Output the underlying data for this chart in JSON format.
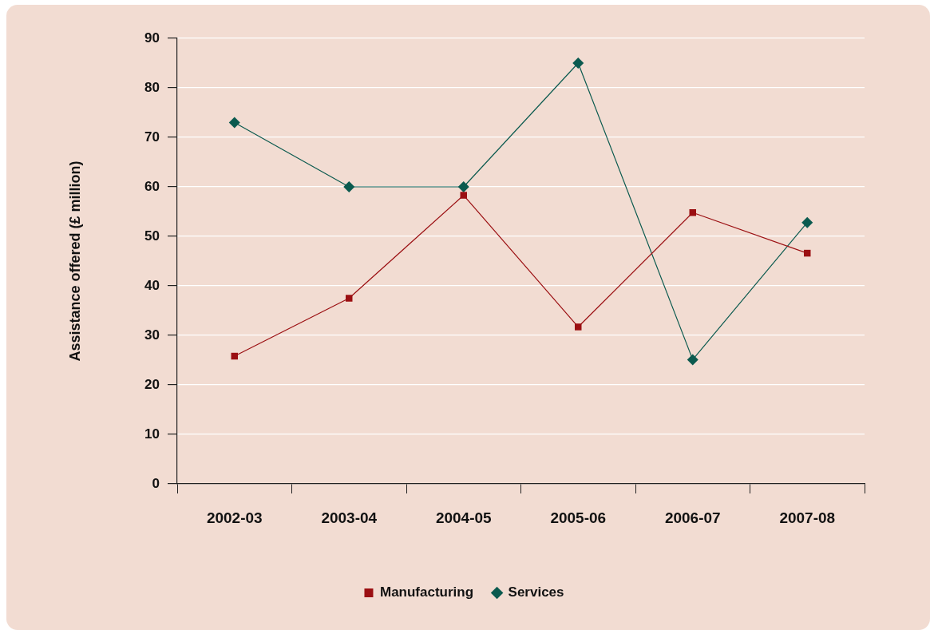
{
  "chart_data": {
    "type": "line",
    "ylabel": "Assistance offered (£ million)",
    "categories": [
      "2002-03",
      "2003-04",
      "2004-05",
      "2005-06",
      "2006-07",
      "2007-08"
    ],
    "series": [
      {
        "name": "Manufacturing",
        "color": "#9b0f12",
        "marker": "square",
        "values": [
          25.8,
          37.5,
          58.3,
          31.7,
          54.8,
          46.6
        ]
      },
      {
        "name": "Services",
        "color": "#0b5a4f",
        "marker": "diamond",
        "values": [
          73,
          60,
          60,
          85,
          25.1,
          52.8
        ]
      }
    ],
    "ylim": [
      0,
      90
    ],
    "yticks": [
      0,
      10,
      20,
      30,
      40,
      50,
      60,
      70,
      80,
      90
    ],
    "grid": "y",
    "legend": "bottom",
    "line_style": "solid"
  }
}
